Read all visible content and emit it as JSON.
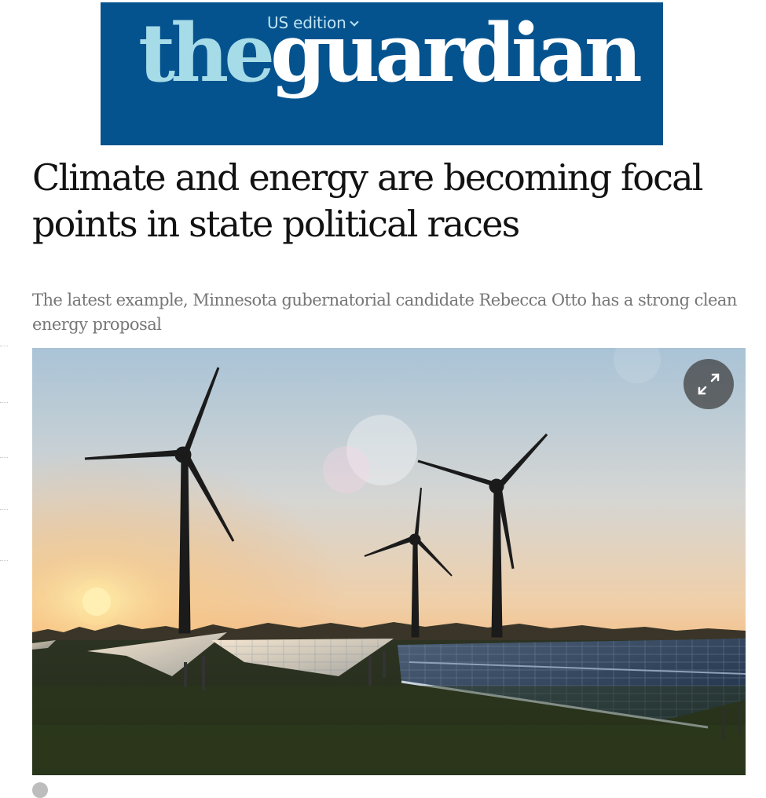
{
  "masthead": {
    "edition_label": "US edition",
    "logo_the": "the",
    "logo_guardian": "guardian",
    "background_color": "#05538e",
    "the_color": "#a6dbe8"
  },
  "article": {
    "headline": "Climate and energy are becoming focal points in state political races",
    "standfirst": "The latest example, Minnesota gubernatorial candidate Rebecca Otto has a strong clean energy proposal"
  },
  "hero_image": {
    "subject": "wind turbines and solar panels at sunset",
    "expand_icon": "expand-icon"
  }
}
